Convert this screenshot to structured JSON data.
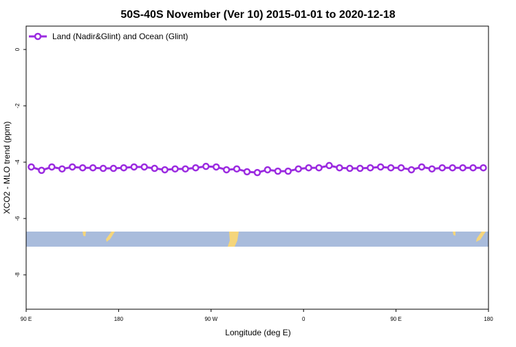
{
  "chart_data": {
    "type": "line",
    "title": "50S-40S November (Ver 10)   2015-01-01 to 2020-12-18",
    "xlabel": "Longitude (deg E)",
    "ylabel": "XCO2 - MLO trend (ppm)",
    "x": [
      95,
      105,
      115,
      125,
      135,
      145,
      155,
      165,
      175,
      185,
      195,
      205,
      215,
      225,
      235,
      245,
      255,
      265,
      275,
      285,
      295,
      305,
      315,
      325,
      335,
      345,
      355,
      365,
      375,
      385,
      395,
      405,
      415,
      425,
      435,
      445,
      455,
      465,
      475,
      485,
      495,
      505,
      515,
      525,
      535
    ],
    "series": [
      {
        "name": "Land (Nadir&Glint) and Ocean (Glint)",
        "color": "#9b2be0",
        "values": [
          -4.17,
          -4.29,
          -4.17,
          -4.24,
          -4.17,
          -4.2,
          -4.2,
          -4.22,
          -4.22,
          -4.2,
          -4.17,
          -4.17,
          -4.22,
          -4.27,
          -4.24,
          -4.24,
          -4.2,
          -4.15,
          -4.17,
          -4.27,
          -4.24,
          -4.34,
          -4.37,
          -4.27,
          -4.32,
          -4.32,
          -4.24,
          -4.2,
          -4.2,
          -4.12,
          -4.2,
          -4.22,
          -4.22,
          -4.2,
          -4.17,
          -4.2,
          -4.2,
          -4.27,
          -4.17,
          -4.24,
          -4.2,
          -4.2,
          -4.2,
          -4.2,
          -4.2
        ]
      }
    ],
    "xlim": [
      90,
      540
    ],
    "xticks": [
      {
        "value": 90,
        "label": "90 E"
      },
      180,
      {
        "value": 270,
        "label": "90 W"
      },
      {
        "value": 360,
        "label": "0"
      },
      {
        "value": 450,
        "label": "90 E"
      },
      {
        "value": 540,
        "label": "180"
      }
    ],
    "ylim": [
      -9.22,
      0.83
    ],
    "yticks": [
      0,
      -2,
      -4,
      -6,
      -8
    ],
    "legend": "top-left"
  }
}
